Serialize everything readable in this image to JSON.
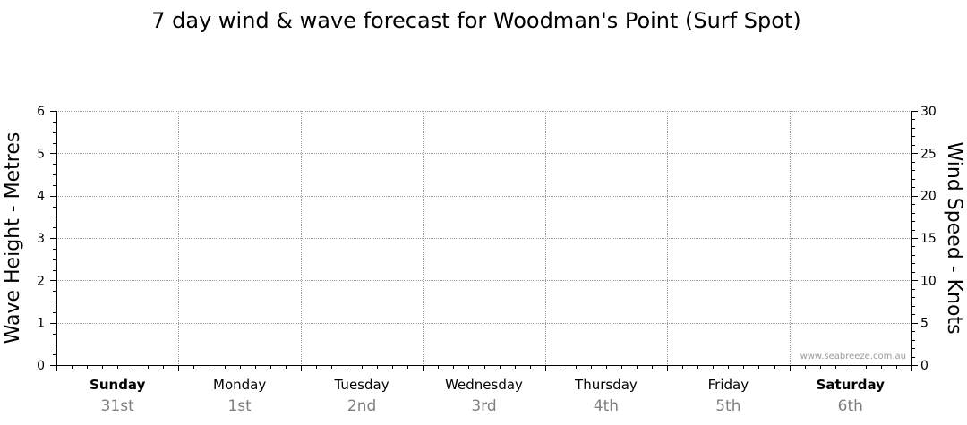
{
  "chart_data": {
    "type": "line",
    "title": "7 day wind & wave forecast for Woodman's Point (Surf Spot)",
    "ylabel": "Wave Height - Metres",
    "y2label": "Wind Speed - Knots",
    "ylim": [
      0,
      6
    ],
    "y2lim": [
      0,
      30
    ],
    "yticks": [
      0,
      1,
      2,
      3,
      4,
      5,
      6
    ],
    "y2ticks": [
      0,
      5,
      10,
      15,
      20,
      25,
      30
    ],
    "grid": true,
    "days": [
      {
        "name": "Sunday",
        "date": "31st",
        "bold": true
      },
      {
        "name": "Monday",
        "date": "1st",
        "bold": false
      },
      {
        "name": "Tuesday",
        "date": "2nd",
        "bold": false
      },
      {
        "name": "Wednesday",
        "date": "3rd",
        "bold": false
      },
      {
        "name": "Thursday",
        "date": "4th",
        "bold": false
      },
      {
        "name": "Friday",
        "date": "5th",
        "bold": false
      },
      {
        "name": "Saturday",
        "date": "6th",
        "bold": true
      }
    ],
    "series": [],
    "watermark": "www.seabreeze.com.au"
  },
  "colors": {
    "grid": "#9a9a9a",
    "axis": "#000000",
    "day_date": "#7f7f7f"
  }
}
